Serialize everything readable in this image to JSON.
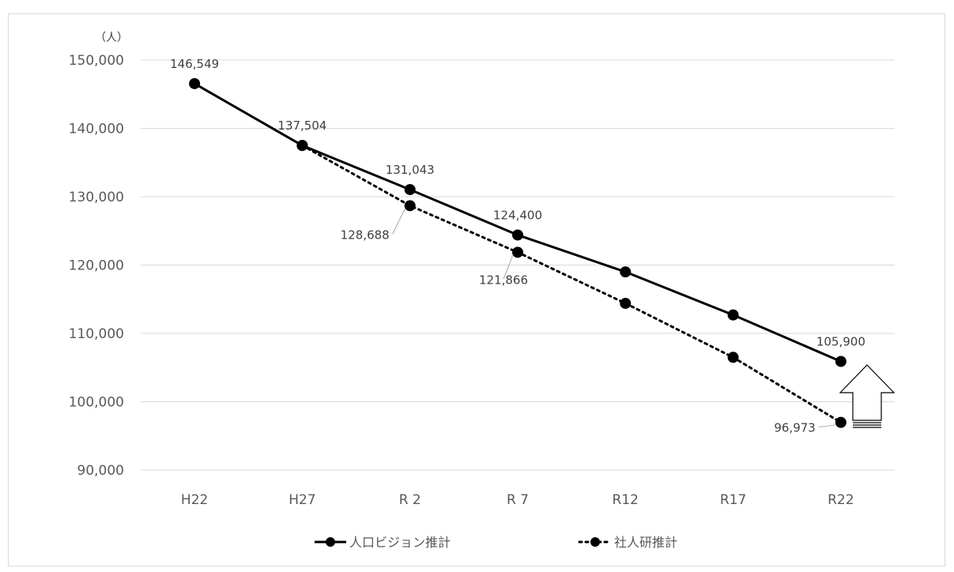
{
  "chart_data": {
    "type": "line",
    "y_unit_label": "（人）",
    "categories": [
      "H22",
      "H27",
      "R 2",
      "R 7",
      "R12",
      "R17",
      "R22"
    ],
    "ylim": [
      90000,
      150000
    ],
    "yticks": [
      90000,
      100000,
      110000,
      120000,
      130000,
      140000,
      150000
    ],
    "ytick_labels": [
      "90,000",
      "100,000",
      "110,000",
      "120,000",
      "130,000",
      "140,000",
      "150,000"
    ],
    "grid": true,
    "legend_position": "bottom",
    "series": [
      {
        "name": "人口ビジョン推計",
        "style": "solid",
        "values": [
          146549,
          137504,
          131043,
          124400,
          119000,
          112700,
          105900
        ],
        "labels": [
          "146,549",
          "137,504",
          "131,043",
          "124,400",
          "",
          "",
          "105,900"
        ]
      },
      {
        "name": "社人研推計",
        "style": "dotted",
        "values": [
          null,
          137504,
          128688,
          121866,
          114400,
          106500,
          96973
        ],
        "labels": [
          "",
          "",
          "128,688",
          "121,866",
          "",
          "",
          "96,973"
        ]
      }
    ],
    "annotation": "up-arrow",
    "colors": {
      "line": "#000000",
      "grid": "#d9d9d9",
      "axis_text": "#595959"
    }
  }
}
